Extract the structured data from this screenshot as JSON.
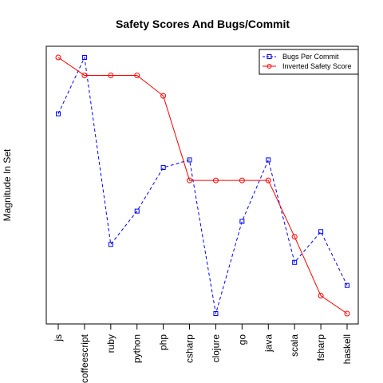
{
  "chart_data": {
    "type": "line",
    "title": "Safety Scores And Bugs/Commit",
    "xlabel": "",
    "ylabel": "Magnitude In Set",
    "categories": [
      "js",
      "coffeescript",
      "ruby",
      "python",
      "php",
      "csharp",
      "clojure",
      "go",
      "java",
      "scala",
      "fsharp",
      "haskell"
    ],
    "ylim": [
      0,
      1
    ],
    "grid": false,
    "legend_position": "top-right",
    "series": [
      {
        "name": "Bugs Per Commit",
        "color": "#0000ff",
        "line_style": "dashed",
        "marker": "square",
        "values": [
          0.78,
          1.0,
          0.27,
          0.4,
          0.57,
          0.6,
          0.0,
          0.36,
          0.6,
          0.2,
          0.32,
          0.11
        ]
      },
      {
        "name": "Inverted Safety Score",
        "color": "#ff0000",
        "line_style": "solid",
        "marker": "circle",
        "values": [
          1.0,
          0.93,
          0.93,
          0.93,
          0.85,
          0.52,
          0.52,
          0.52,
          0.52,
          0.3,
          0.07,
          0.0
        ]
      }
    ]
  }
}
